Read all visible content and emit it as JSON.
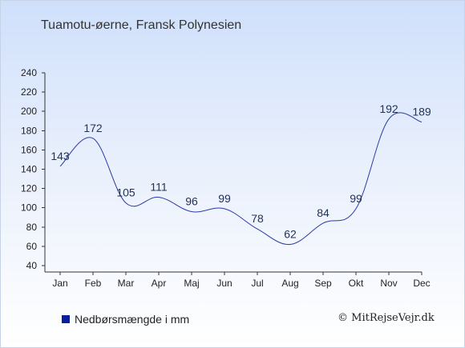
{
  "header": {
    "title": "Tuamotu-øerne, Fransk Polynesien"
  },
  "legend": {
    "label": "Nedbørsmængde i mm",
    "color": "#0a1f9e"
  },
  "footer": {
    "copyright": "© MitRejseVejr.dk"
  },
  "chart_data": {
    "type": "line",
    "title": "Tuamotu-øerne, Fransk Polynesien",
    "xlabel": "",
    "ylabel": "",
    "categories": [
      "Jan",
      "Feb",
      "Mar",
      "Apr",
      "Maj",
      "Jun",
      "Jul",
      "Aug",
      "Sep",
      "Okt",
      "Nov",
      "Dec"
    ],
    "series": [
      {
        "name": "Nedbørsmængde i mm",
        "values": [
          143,
          172,
          105,
          111,
          96,
          99,
          78,
          62,
          84,
          99,
          192,
          189
        ]
      }
    ],
    "ylim": [
      40,
      240
    ],
    "yticks": [
      40,
      60,
      80,
      100,
      120,
      140,
      160,
      180,
      200,
      220,
      240
    ],
    "line_color": "#2a3aa8",
    "grid": false,
    "legend_position": "bottom-left"
  }
}
